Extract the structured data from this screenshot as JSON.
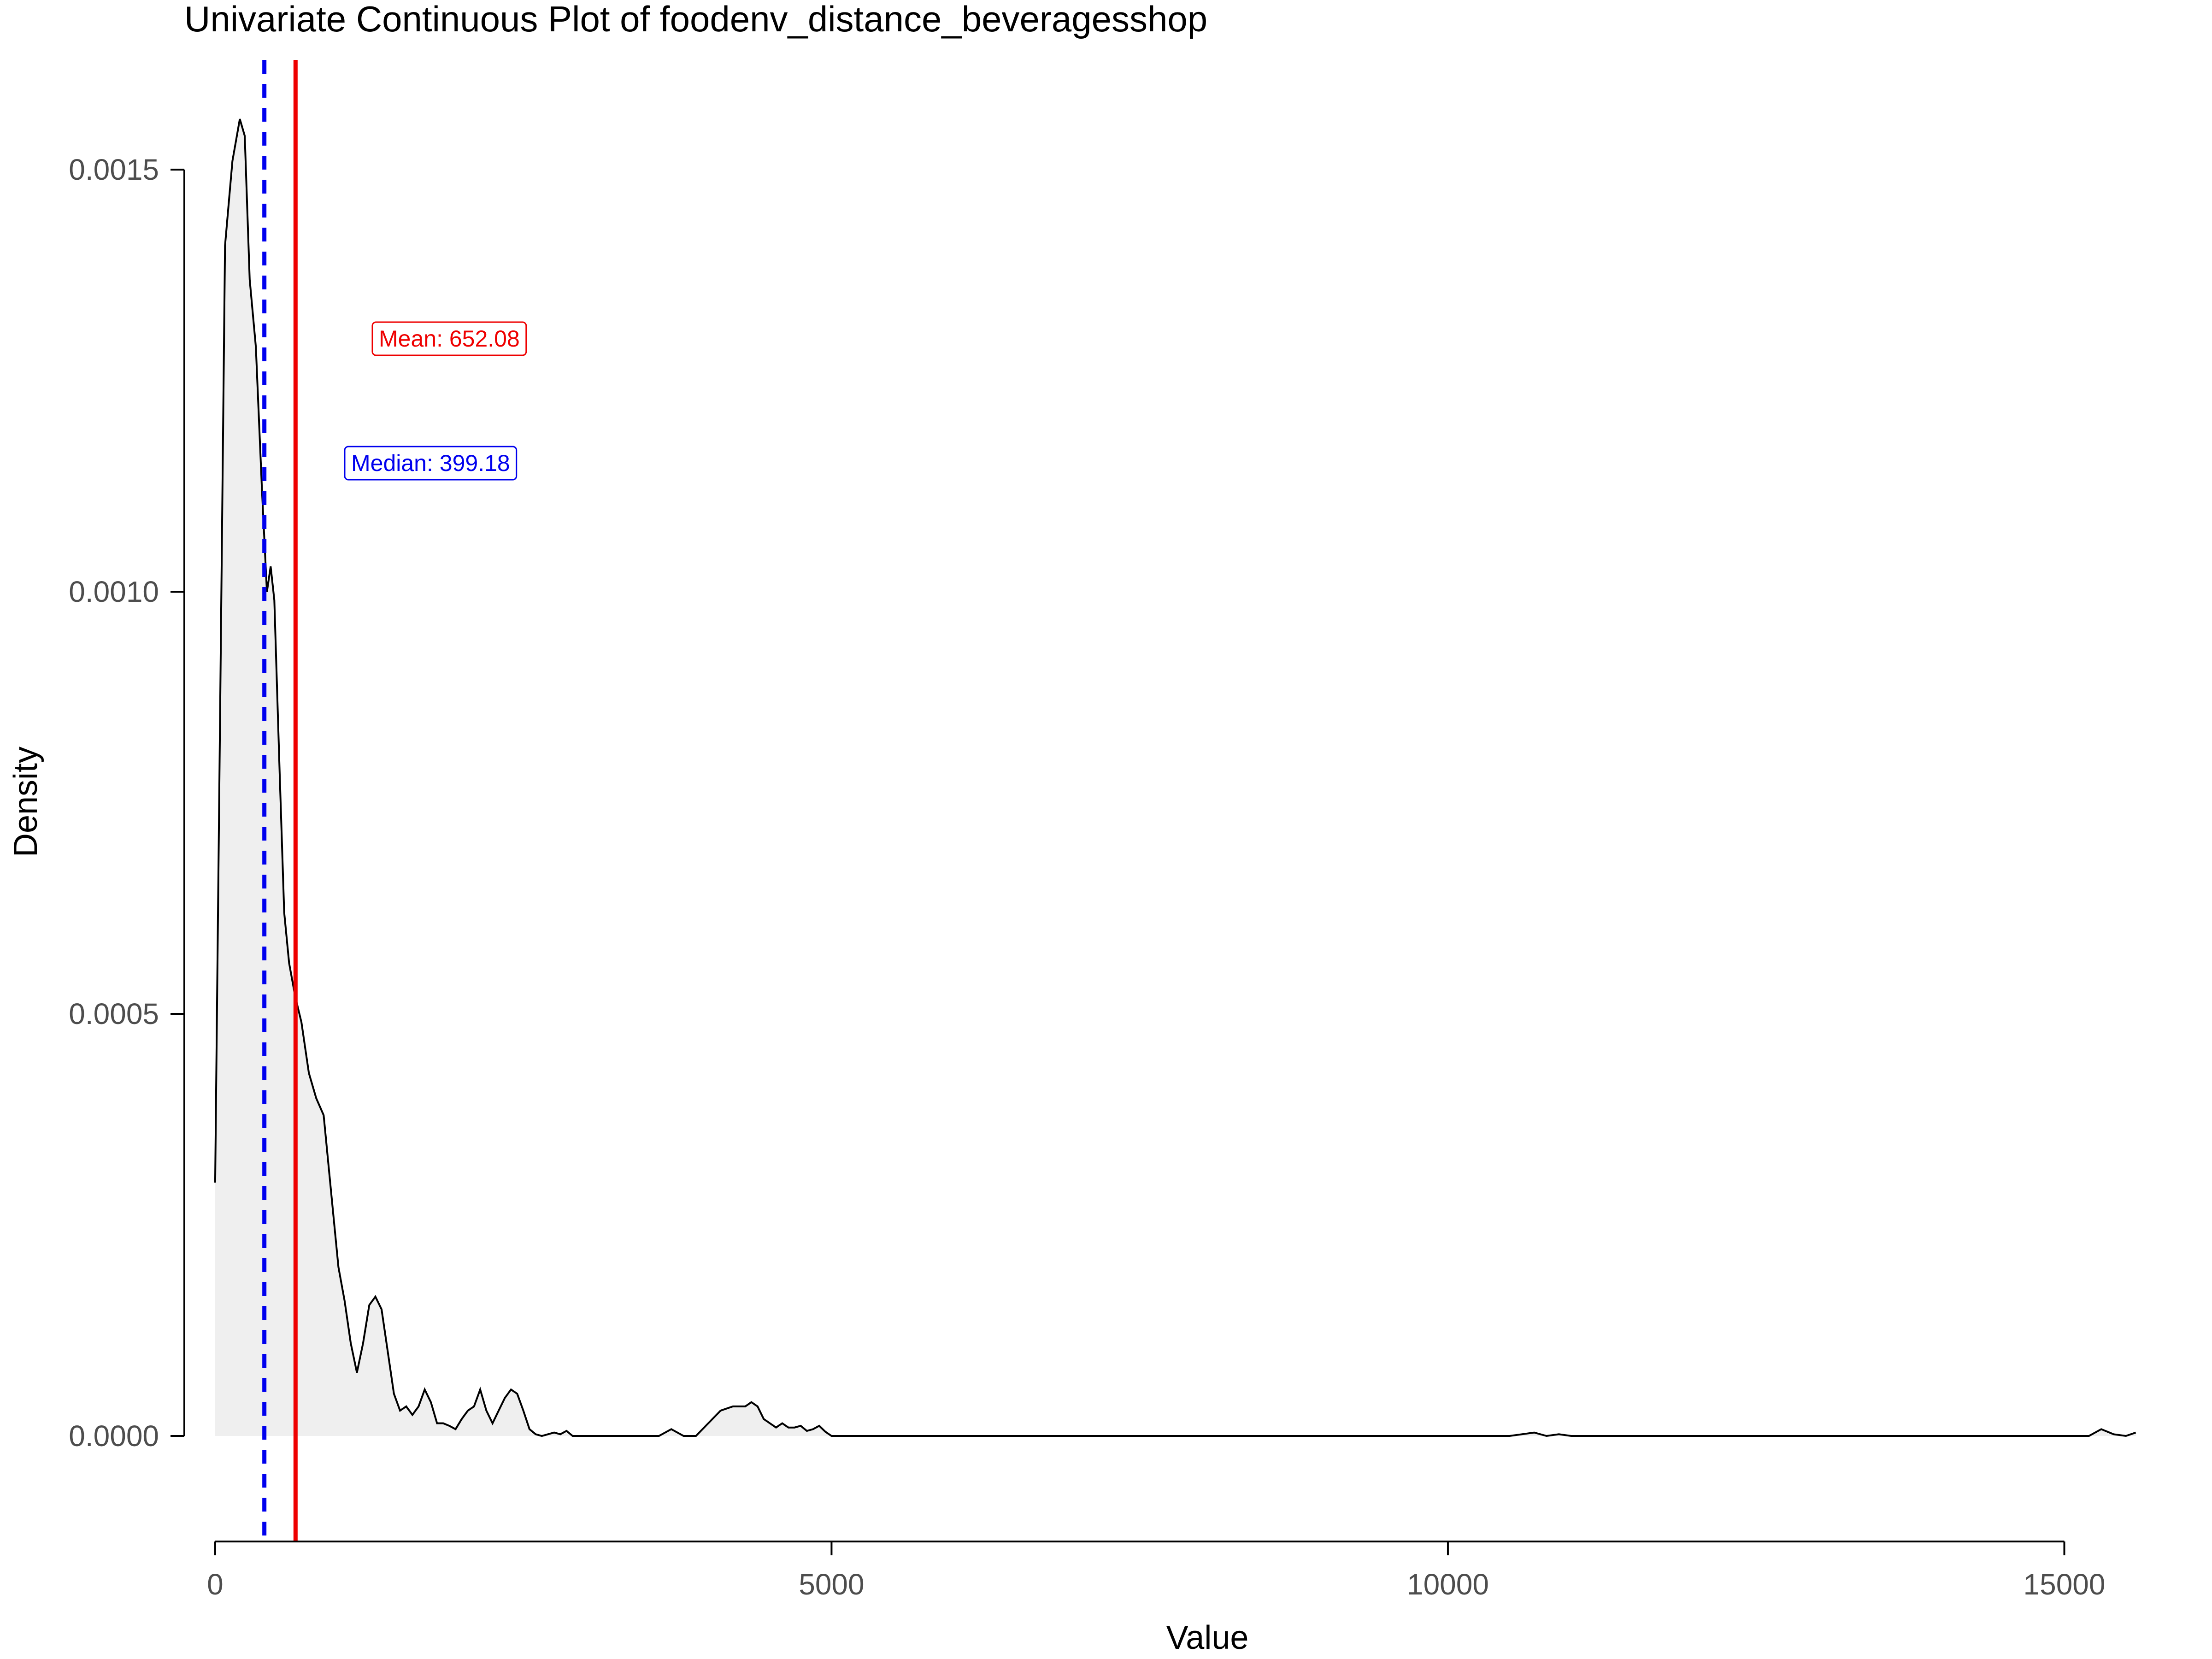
{
  "chart_data": {
    "type": "area",
    "title": "Univariate Continuous Plot of foodenv_distance_beveragesshop",
    "xlabel": "Value",
    "ylabel": "Density",
    "xlim": [
      -250,
      15600
    ],
    "ylim": [
      -9.5e-05,
      0.00163
    ],
    "x_ticks": [
      0,
      5000,
      10000,
      15000
    ],
    "x_tick_labels": [
      "0",
      "5000",
      "10000",
      "15000"
    ],
    "y_ticks": [
      0,
      0.0005,
      0.001,
      0.0015
    ],
    "y_tick_labels": [
      "0.0000",
      "0.0005",
      "0.0010",
      "0.0015"
    ],
    "grid": false,
    "series": [
      {
        "x": [
          0,
          80,
          140,
          200,
          240,
          280,
          330,
          380,
          420,
          450,
          480,
          520,
          560,
          600,
          650,
          700,
          760,
          820,
          880,
          940,
          1000,
          1050,
          1100,
          1150,
          1200,
          1250,
          1300,
          1350,
          1400,
          1450,
          1500,
          1550,
          1600,
          1650,
          1700,
          1750,
          1800,
          1850,
          1900,
          1950,
          2000,
          2050,
          2100,
          2150,
          2200,
          2250,
          2300,
          2350,
          2400,
          2450,
          2500,
          2550,
          2600,
          2650,
          2700,
          2750,
          2800,
          2850,
          2900,
          3000,
          3100,
          3200,
          3300,
          3400,
          3500,
          3600,
          3700,
          3800,
          3900,
          4000,
          4100,
          4200,
          4300,
          4350,
          4400,
          4450,
          4500,
          4550,
          4600,
          4650,
          4700,
          4750,
          4800,
          4850,
          4900,
          4950,
          5000,
          5100,
          5200,
          5300,
          5400,
          5500,
          5600,
          5700,
          5800,
          6000,
          7000,
          8000,
          9000,
          10000,
          10500,
          10700,
          10800,
          10900,
          11000,
          11200,
          12000,
          13000,
          14000,
          15000,
          15200,
          15300,
          15400,
          15500,
          15580
        ],
        "y": [
          0.0003,
          0.00141,
          0.00151,
          0.00156,
          0.00154,
          0.00137,
          0.00129,
          0.00112,
          0.001,
          0.00103,
          0.00099,
          0.0008,
          0.00062,
          0.00056,
          0.00052,
          0.00049,
          0.00043,
          0.0004,
          0.00038,
          0.00029,
          0.0002,
          0.00016,
          0.00011,
          7.5e-05,
          0.00011,
          0.000155,
          0.000165,
          0.00015,
          0.0001,
          5e-05,
          3e-05,
          3.5e-05,
          2.5e-05,
          3.5e-05,
          5.5e-05,
          4e-05,
          1.5e-05,
          1.5e-05,
          1.2e-05,
          8e-06,
          2e-05,
          3e-05,
          3.5e-05,
          5.5e-05,
          3e-05,
          1.5e-05,
          3e-05,
          4.5e-05,
          5.5e-05,
          5e-05,
          3e-05,
          8e-06,
          2e-06,
          0,
          2e-06,
          4e-06,
          2e-06,
          6e-06,
          0,
          0,
          0,
          0,
          0,
          0,
          0,
          0,
          8e-06,
          0,
          0,
          1.5e-05,
          3e-05,
          3.5e-05,
          3.5e-05,
          4e-05,
          3.5e-05,
          2e-05,
          1.5e-05,
          1e-05,
          1.5e-05,
          1e-05,
          1e-05,
          1.2e-05,
          6e-06,
          8e-06,
          1.2e-05,
          5e-06,
          0,
          0,
          0,
          0,
          0,
          0,
          0,
          0,
          0,
          0,
          0,
          0,
          0,
          0,
          0,
          4e-06,
          0,
          2e-06,
          0,
          0,
          0,
          0,
          0,
          0,
          0,
          8e-06,
          2e-06,
          0,
          4e-06
        ]
      }
    ],
    "vlines": [
      {
        "label": "Mean: 652.08",
        "value": 652.08,
        "style": "solid",
        "color": "#ee0000"
      },
      {
        "label": "Median: 399.18",
        "value": 399.18,
        "style": "dashed",
        "color": "#0000ee"
      }
    ],
    "fill_color": "#efefef",
    "line_color": "#000000"
  }
}
